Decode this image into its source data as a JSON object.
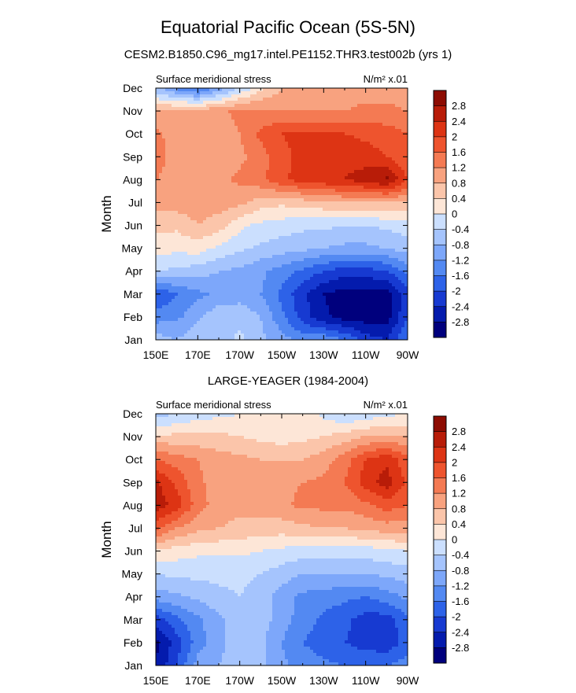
{
  "page": {
    "title": "Equatorial Pacific Ocean (5S-5N)",
    "subtitle": "CESM2.B1850.C96_mg17.intel.PE1152.THR3.test002b (yrs 1)"
  },
  "colors": {
    "levels": [
      "#00007d",
      "#041bad",
      "#173ad1",
      "#2d62e8",
      "#5389f2",
      "#7da7fa",
      "#a5c4fd",
      "#cbdffe",
      "#fde6d7",
      "#fbc5aa",
      "#f8a27f",
      "#f47a53",
      "#ee542e",
      "#dd3414",
      "#b81c08",
      "#8d0c02"
    ]
  },
  "chart_data": [
    {
      "type": "heatmap",
      "panel_title": "",
      "left_label": "Surface meridional stress",
      "right_label": "N/m² x.01",
      "ylabel": "Month",
      "xlabel": "",
      "x_ticks": [
        "150E",
        "170E",
        "170W",
        "150W",
        "130W",
        "110W",
        "90W"
      ],
      "x_values": [
        150,
        170,
        190,
        210,
        230,
        250,
        270
      ],
      "xlim": [
        150,
        270
      ],
      "y_ticks": [
        "Jan",
        "Feb",
        "Mar",
        "Apr",
        "May",
        "Jun",
        "Jul",
        "Aug",
        "Sep",
        "Oct",
        "Nov",
        "Dec"
      ],
      "colorbar_levels": [
        -2.8,
        -2.4,
        -2,
        -1.6,
        -1.2,
        -0.8,
        -0.4,
        0,
        0.4,
        0.8,
        1.2,
        1.6,
        2,
        2.4,
        2.8
      ],
      "colorbar_labels": [
        "2.8",
        "2.4",
        "2",
        "1.6",
        "1.2",
        "0.8",
        "0.4",
        "0",
        "-0.4",
        "-0.8",
        "-1.2",
        "-1.6",
        "-2",
        "-2.4",
        "-2.8"
      ],
      "values": [
        [
          -0.6,
          -0.8,
          -0.5,
          -0.6,
          -0.3,
          -0.7,
          -1.0,
          -1.4,
          -1.3,
          -1.6,
          -2.2,
          -2.4,
          -1.6
        ],
        [
          -1.4,
          -1.3,
          -0.9,
          -0.5,
          -0.5,
          -0.8,
          -1.5,
          -2.2,
          -2.7,
          -3.0,
          -3.0,
          -3.0,
          -2.0
        ],
        [
          -2.0,
          -1.6,
          -1.3,
          -1.1,
          -1.0,
          -1.2,
          -1.7,
          -2.3,
          -2.8,
          -3.0,
          -3.0,
          -3.0,
          -2.2
        ],
        [
          -0.4,
          -0.5,
          -0.6,
          -0.8,
          -0.9,
          -1.1,
          -1.4,
          -1.7,
          -2.0,
          -2.2,
          -2.2,
          -2.0,
          -1.5
        ],
        [
          0.2,
          0.1,
          0.2,
          -0.1,
          -0.3,
          -0.5,
          -0.6,
          -0.7,
          -0.8,
          -0.9,
          -0.9,
          -0.8,
          -0.6
        ],
        [
          0.5,
          0.5,
          0.8,
          0.6,
          0.1,
          -0.1,
          -0.2,
          -0.3,
          -0.3,
          -0.4,
          -0.4,
          -0.3,
          -0.2
        ],
        [
          1.0,
          1.0,
          1.0,
          1.0,
          0.9,
          0.6,
          0.5,
          0.6,
          0.7,
          0.8,
          0.8,
          0.8,
          0.8
        ],
        [
          1.2,
          1.0,
          1.0,
          1.1,
          1.3,
          1.5,
          1.9,
          2.2,
          2.3,
          2.4,
          2.6,
          2.9,
          2.0
        ],
        [
          1.4,
          1.0,
          0.9,
          0.9,
          1.1,
          1.4,
          1.9,
          2.1,
          2.2,
          2.3,
          2.2,
          2.0,
          1.6
        ],
        [
          1.3,
          1.0,
          0.9,
          1.0,
          1.2,
          1.7,
          2.0,
          2.1,
          2.1,
          2.0,
          1.9,
          1.8,
          1.6
        ],
        [
          0.9,
          0.9,
          1.0,
          1.1,
          1.3,
          1.3,
          1.2,
          1.2,
          1.2,
          1.2,
          1.3,
          1.3,
          1.2
        ],
        [
          -0.7,
          -1.3,
          -1.8,
          -1.1,
          -0.4,
          0.3,
          0.8,
          1.0,
          1.0,
          1.0,
          1.0,
          1.0,
          1.0
        ]
      ]
    },
    {
      "type": "heatmap",
      "panel_title": "LARGE-YEAGER (1984-2004)",
      "left_label": "Surface meridional stress",
      "right_label": "N/m² x.01",
      "ylabel": "Month",
      "xlabel": "",
      "x_ticks": [
        "150E",
        "170E",
        "170W",
        "150W",
        "130W",
        "110W",
        "90W"
      ],
      "x_values": [
        150,
        170,
        190,
        210,
        230,
        250,
        270
      ],
      "xlim": [
        150,
        270
      ],
      "y_ticks": [
        "Jan",
        "Feb",
        "Mar",
        "Apr",
        "May",
        "Jun",
        "Jul",
        "Aug",
        "Sep",
        "Oct",
        "Nov",
        "Dec"
      ],
      "colorbar_levels": [
        -2.8,
        -2.4,
        -2,
        -1.6,
        -1.2,
        -0.8,
        -0.4,
        0,
        0.4,
        0.8,
        1.2,
        1.6,
        2,
        2.4,
        2.8
      ],
      "colorbar_labels": [
        "2.8",
        "2.4",
        "2",
        "1.6",
        "1.2",
        "0.8",
        "0.4",
        "0",
        "-0.4",
        "-0.8",
        "-1.2",
        "-1.6",
        "-2",
        "-2.4",
        "-2.8"
      ],
      "values": [
        [
          -2.8,
          -2.0,
          -1.0,
          -0.8,
          -0.6,
          -0.7,
          -1.1,
          -1.4,
          -1.5,
          -1.6,
          -1.6,
          -1.6,
          -1.4
        ],
        [
          -2.9,
          -2.2,
          -1.4,
          -0.9,
          -0.6,
          -0.7,
          -1.2,
          -1.6,
          -1.8,
          -2.0,
          -2.2,
          -2.3,
          -1.8
        ],
        [
          -2.2,
          -1.7,
          -1.3,
          -0.9,
          -0.6,
          -0.6,
          -1.0,
          -1.4,
          -1.7,
          -1.9,
          -2.2,
          -2.2,
          -1.7
        ],
        [
          -1.0,
          -0.9,
          -0.7,
          -0.5,
          -0.4,
          -0.6,
          -1.0,
          -1.3,
          -1.4,
          -1.5,
          -1.6,
          -1.4,
          -1.1
        ],
        [
          -0.4,
          -0.3,
          -0.3,
          -0.3,
          -0.3,
          -0.4,
          -0.6,
          -0.8,
          -0.8,
          -0.8,
          -0.8,
          -0.7,
          -0.6
        ],
        [
          0.3,
          0.2,
          0.1,
          0.1,
          0.1,
          0.0,
          -0.1,
          -0.2,
          -0.2,
          -0.2,
          -0.2,
          -0.1,
          0.0
        ],
        [
          1.7,
          1.2,
          0.9,
          0.8,
          0.7,
          0.6,
          0.6,
          0.7,
          0.8,
          0.8,
          0.9,
          1.0,
          1.0
        ],
        [
          2.7,
          2.2,
          1.4,
          1.0,
          0.9,
          1.0,
          1.1,
          1.3,
          1.3,
          1.3,
          1.5,
          1.8,
          1.6
        ],
        [
          2.5,
          1.9,
          1.3,
          1.0,
          0.9,
          1.0,
          1.1,
          1.2,
          1.3,
          1.6,
          2.2,
          2.6,
          1.9
        ],
        [
          1.6,
          1.4,
          1.2,
          1.0,
          0.9,
          0.8,
          0.8,
          0.8,
          1.0,
          1.4,
          2.0,
          2.3,
          1.7
        ],
        [
          0.5,
          0.5,
          0.5,
          0.5,
          0.4,
          0.3,
          0.2,
          0.3,
          0.4,
          0.6,
          0.8,
          0.9,
          0.8
        ],
        [
          -0.6,
          -0.4,
          -0.2,
          -0.1,
          0.0,
          0.0,
          0.1,
          0.2,
          -0.1,
          -0.4,
          -0.3,
          -0.1,
          0.0
        ]
      ]
    }
  ]
}
